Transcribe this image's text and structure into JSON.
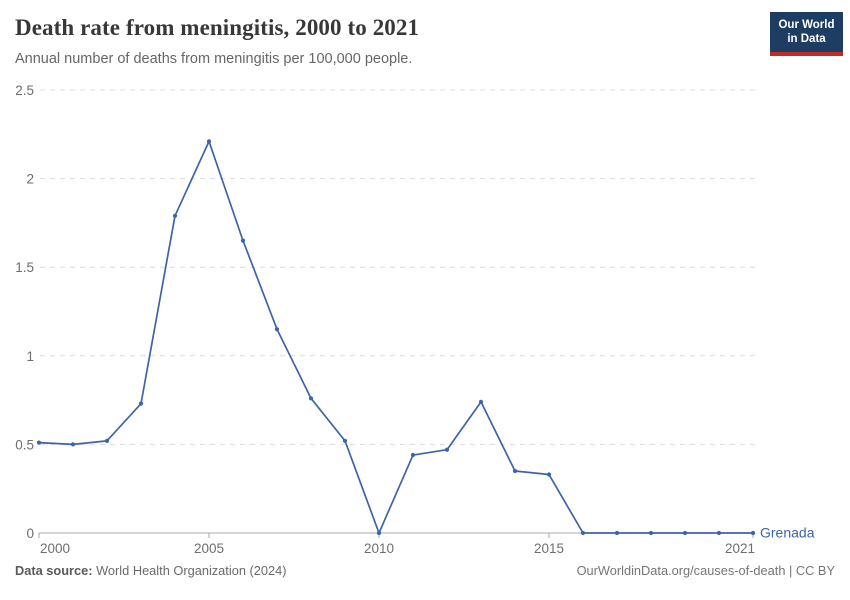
{
  "header": {
    "title": "Death rate from meningitis, 2000 to 2021",
    "subtitle": "Annual number of deaths from meningitis per 100,000 people.",
    "logo": {
      "line1": "Our World",
      "line2": "in Data"
    }
  },
  "chart_data": {
    "type": "line",
    "title": "Death rate from meningitis, 2000 to 2021",
    "subtitle": "Annual number of deaths from meningitis per 100,000 people.",
    "x": [
      2000,
      2001,
      2002,
      2003,
      2004,
      2005,
      2006,
      2007,
      2008,
      2009,
      2010,
      2011,
      2012,
      2013,
      2014,
      2015,
      2016,
      2017,
      2018,
      2019,
      2020,
      2021
    ],
    "series": [
      {
        "name": "Grenada",
        "color": "#3d64a8",
        "values": [
          0.51,
          0.5,
          0.52,
          0.73,
          1.79,
          2.21,
          1.65,
          1.15,
          0.76,
          0.52,
          0,
          0.44,
          0.47,
          0.74,
          0.35,
          0.33,
          0,
          0,
          0,
          0,
          0,
          0
        ]
      }
    ],
    "xlabel": "",
    "ylabel": "",
    "ylim": [
      0,
      2.5
    ],
    "yticks": [
      0,
      0.5,
      1,
      1.5,
      2,
      2.5
    ],
    "xticks": [
      2000,
      2005,
      2010,
      2015,
      2021
    ],
    "grid": "horizontal-dashed",
    "legend_position": "end-of-line-label",
    "marker": "dot"
  },
  "footer": {
    "source_label": "Data source:",
    "source_text": " World Health Organization (2024)",
    "credit": "OurWorldinData.org/causes-of-death | CC BY"
  },
  "colors": {
    "line": "#3d64a8",
    "gridline": "#dcdcdc",
    "axis": "#a8a8a8",
    "tick_text": "#6e6e6e",
    "title_text": "#383838",
    "subtitle_text": "#666666",
    "logo_bg": "#1d3d63",
    "logo_strip": "#c52a22"
  }
}
